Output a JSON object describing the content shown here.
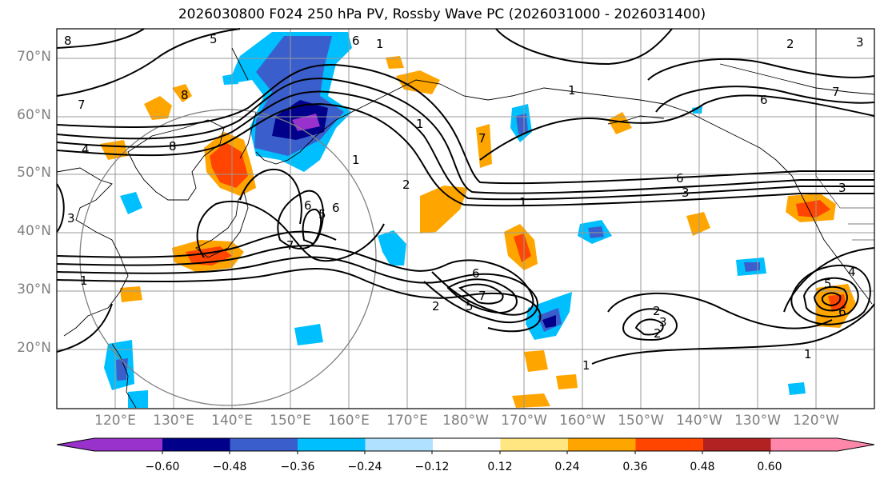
{
  "title": "2026030800 F024 250 hPa PV, Rossby Wave PC (2026031000 - 2026031400)",
  "lat_labels": [
    "70°N",
    "60°N",
    "50°N",
    "40°N",
    "30°N",
    "20°N"
  ],
  "lon_labels": [
    "120°E",
    "130°E",
    "140°E",
    "150°E",
    "160°E",
    "170°E",
    "180°W",
    "170°W",
    "160°W",
    "150°W",
    "140°W",
    "130°W",
    "120°W"
  ],
  "colorbar": {
    "tick_labels": [
      "−0.60",
      "−0.48",
      "−0.36",
      "−0.24",
      "−0.12",
      "0.12",
      "0.24",
      "0.36",
      "0.48",
      "0.60"
    ],
    "colors": [
      "#9932cc",
      "#00008b",
      "#3a5fcd",
      "#00bfff",
      "#b0e2ff",
      "#ffffff",
      "#ffe680",
      "#ffa500",
      "#ff4500",
      "#b22222",
      "#ff88aa"
    ]
  },
  "contour_labels": [
    "8",
    "5",
    "6",
    "7",
    "8",
    "8",
    "4",
    "3",
    "1",
    "1",
    "2",
    "6",
    "5",
    "7",
    "6",
    "1",
    "1",
    "7",
    "6",
    "3",
    "1",
    "2",
    "5",
    "7",
    "6",
    "2",
    "3",
    "2",
    "1",
    "1",
    "3",
    "4",
    "5",
    "6",
    "7",
    "6",
    "3",
    "2",
    "1"
  ]
}
